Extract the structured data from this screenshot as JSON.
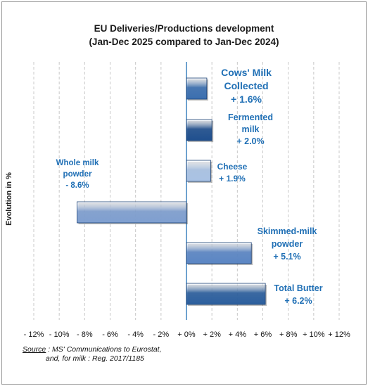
{
  "chart_data": {
    "type": "bar",
    "orientation": "horizontal",
    "title": "EU Deliveries/Productions development",
    "subtitle": "(Jan-Dec 2025 compared to Jan-Dec 2024)",
    "ylabel": "Evolution in %",
    "xlim": [
      -12,
      12
    ],
    "xticks": [
      -12,
      -10,
      -8,
      -6,
      -4,
      -2,
      0,
      2,
      4,
      6,
      8,
      10,
      12
    ],
    "xtick_labels": [
      "- 12%",
      "- 10%",
      "- 8%",
      "- 6%",
      "- 4%",
      "- 2%",
      "+ 0%",
      "+ 2%",
      "+ 4%",
      "+ 6%",
      "+ 8%",
      "+ 10%",
      "+ 12%"
    ],
    "grid": "vertical dashed",
    "categories": [
      {
        "lines": [
          "Cows' Milk",
          "Collected",
          "+ 1.6%"
        ],
        "value": 1.6,
        "color": "#3b6fb0"
      },
      {
        "lines": [
          "Fermented",
          "milk",
          "+ 2.0%"
        ],
        "value": 2.0,
        "color": "#1f4f8e"
      },
      {
        "lines": [
          "Cheese",
          "+ 1.9%"
        ],
        "value": 1.9,
        "color": "#a9c2e4"
      },
      {
        "lines": [
          "Whole milk",
          "powder",
          "- 8.6%"
        ],
        "value": -8.6,
        "color": "#7f9fd0"
      },
      {
        "lines": [
          "Skimmed-milk",
          "powder",
          "+ 5.1%"
        ],
        "value": 5.1,
        "color": "#5b86c4"
      },
      {
        "lines": [
          "Total Butter",
          "+ 6.2%"
        ],
        "value": 6.2,
        "color": "#2c5f9e"
      }
    ]
  },
  "source": {
    "label": "Source",
    "line1": ": MS' Communications to Eurostat,",
    "line2": "and, for milk : Reg. 2017/1185"
  }
}
